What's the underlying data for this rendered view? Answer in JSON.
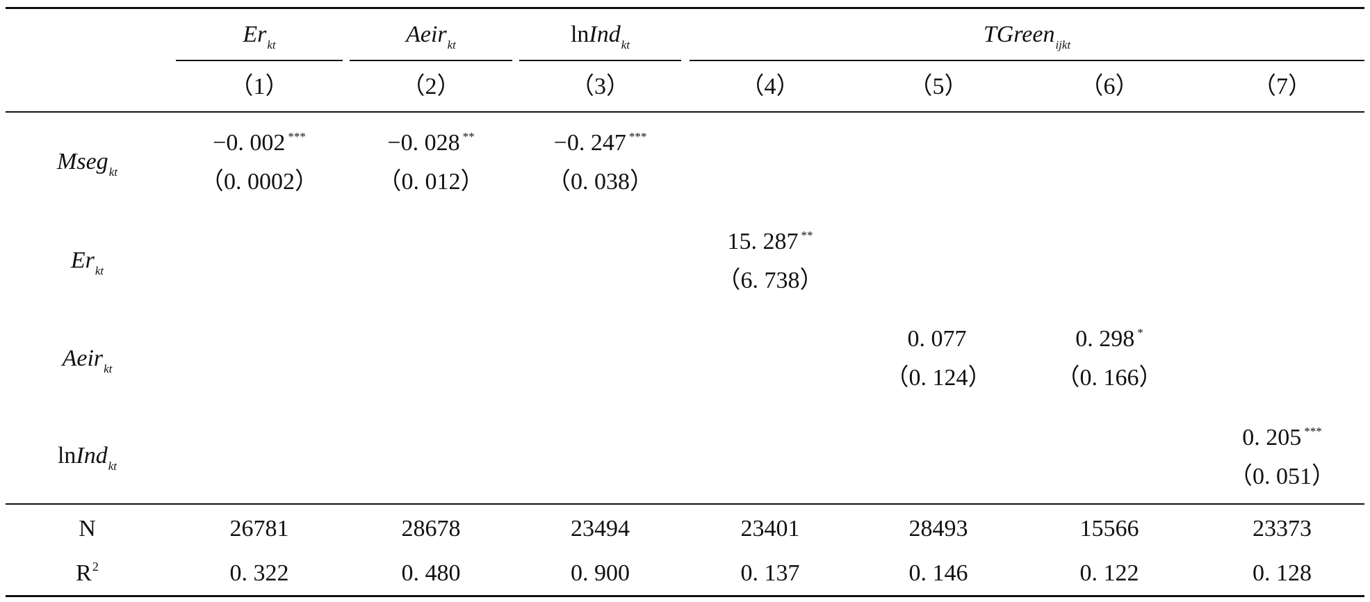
{
  "header": {
    "groups": [
      {
        "id": "er",
        "main": "Er",
        "sub": "kt",
        "prefix": ""
      },
      {
        "id": "aeir",
        "main": "Aeir",
        "sub": "kt",
        "prefix": ""
      },
      {
        "id": "lnind",
        "main": "Ind",
        "sub": "kt",
        "prefix": "ln"
      },
      {
        "id": "tgreen",
        "main": "TGreen",
        "sub": "ijkt",
        "prefix": ""
      }
    ],
    "columns": [
      "（1）",
      "（2）",
      "（3）",
      "（4）",
      "（5）",
      "（6）",
      "（7）"
    ]
  },
  "rows": {
    "mseg": {
      "main": "Mseg",
      "sub": "kt",
      "prefix": "",
      "c1": {
        "coef": "−0. 002",
        "stars": "***",
        "se": "（0. 0002）"
      },
      "c2": {
        "coef": "−0. 028",
        "stars": "**",
        "se": "（0. 012）"
      },
      "c3": {
        "coef": "−0. 247",
        "stars": "***",
        "se": "（0. 038）"
      }
    },
    "er": {
      "main": "Er",
      "sub": "kt",
      "prefix": "",
      "c4": {
        "coef": "15. 287",
        "stars": "**",
        "se": "（6. 738）"
      }
    },
    "aeir": {
      "main": "Aeir",
      "sub": "kt",
      "prefix": "",
      "c5": {
        "coef": "0. 077",
        "stars": "",
        "se": "（0. 124）"
      },
      "c6": {
        "coef": "0. 298",
        "stars": "*",
        "se": "（0. 166）"
      }
    },
    "lnind": {
      "main": "Ind",
      "sub": "kt",
      "prefix": "ln",
      "c7": {
        "coef": "0. 205",
        "stars": "***",
        "se": "（0. 051）"
      }
    }
  },
  "stats": {
    "n_label": "N",
    "r2_label": "R",
    "r2_sup": "2",
    "n": [
      "26781",
      "28678",
      "23494",
      "23401",
      "28493",
      "15566",
      "23373"
    ],
    "r2": [
      "0. 322",
      "0. 480",
      "0. 900",
      "0. 137",
      "0. 146",
      "0. 122",
      "0. 128"
    ]
  }
}
